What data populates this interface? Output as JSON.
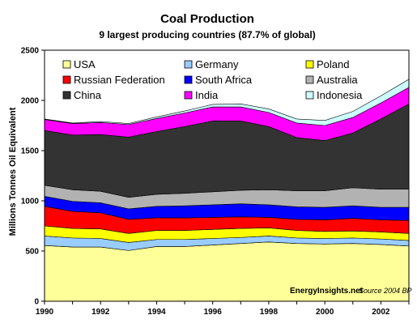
{
  "chart_data": {
    "type": "area",
    "stacked": true,
    "title": "Coal Production",
    "subtitle": "9 largest producing countries (87.7% of global)",
    "xlabel": "",
    "ylabel": "Millions Tonnes Oil Equivalent",
    "x": [
      1990,
      1991,
      1992,
      1993,
      1994,
      1995,
      1996,
      1997,
      1998,
      1999,
      2000,
      2001,
      2002,
      2003
    ],
    "xlim": [
      1990,
      2003
    ],
    "ylim": [
      0,
      2500
    ],
    "x_ticks": [
      "1990",
      "1992",
      "1994",
      "1996",
      "1998",
      "2000",
      "2002"
    ],
    "y_ticks": [
      "0",
      "500",
      "1000",
      "1500",
      "2000",
      "2500"
    ],
    "grid": false,
    "legend_position": "top",
    "series": [
      {
        "name": "USA",
        "color": "#FFFF99",
        "values": [
          555,
          540,
          540,
          505,
          545,
          545,
          560,
          575,
          590,
          575,
          570,
          575,
          565,
          550
        ]
      },
      {
        "name": "Germany",
        "color": "#99CCFF",
        "values": [
          95,
          90,
          85,
          80,
          70,
          70,
          65,
          60,
          60,
          55,
          55,
          55,
          55,
          55
        ]
      },
      {
        "name": "Poland",
        "color": "#FFFF00",
        "values": [
          100,
          95,
          95,
          90,
          90,
          90,
          90,
          90,
          80,
          75,
          70,
          70,
          70,
          70
        ]
      },
      {
        "name": "Russian Federation",
        "color": "#FF0000",
        "values": [
          195,
          170,
          160,
          140,
          125,
          125,
          120,
          115,
          105,
          110,
          115,
          125,
          120,
          130
        ]
      },
      {
        "name": "South Africa",
        "color": "#0000FF",
        "values": [
          100,
          100,
          100,
          105,
          115,
          120,
          125,
          130,
          125,
          125,
          125,
          125,
          125,
          130
        ]
      },
      {
        "name": "Australia",
        "color": "#B2B2B2",
        "values": [
          110,
          115,
          115,
          115,
          120,
          125,
          130,
          135,
          150,
          160,
          165,
          180,
          180,
          180
        ]
      },
      {
        "name": "China",
        "color": "#333333",
        "values": [
          545,
          545,
          565,
          600,
          625,
          665,
          705,
          690,
          630,
          530,
          500,
          545,
          700,
          850
        ]
      },
      {
        "name": "India",
        "color": "#FF00FF",
        "values": [
          110,
          115,
          120,
          125,
          130,
          135,
          140,
          140,
          140,
          145,
          150,
          155,
          160,
          165
        ]
      },
      {
        "name": "Indonesia",
        "color": "#CCFFFF",
        "values": [
          5,
          5,
          10,
          10,
          15,
          20,
          25,
          30,
          35,
          40,
          50,
          60,
          70,
          80
        ]
      }
    ],
    "annotations": {
      "credit": "EnergyInsights.net",
      "source": "Source 2004 BP"
    }
  }
}
